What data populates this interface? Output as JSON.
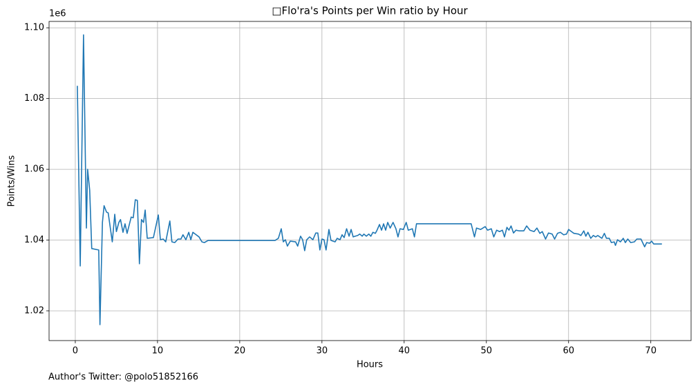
{
  "chart_data": {
    "type": "line",
    "title": "□Flo'ra's Points per Win ratio by Hour",
    "x_label": "Hours",
    "y_label": "Points/Wins",
    "y_offset_label": "1e6",
    "footnote": "Author's Twitter: @polo51852166",
    "color": "#1f77b4",
    "grid": true,
    "xlim": [
      -3.19,
      74.9
    ],
    "ylim": [
      1.0116,
      1.1018
    ],
    "xticks": [
      0,
      10,
      20,
      30,
      40,
      50,
      60,
      70
    ],
    "yticks": [
      {
        "value": 1.02,
        "label": "1.02"
      },
      {
        "value": 1.04,
        "label": "1.04"
      },
      {
        "value": 1.06,
        "label": "1.06"
      },
      {
        "value": 1.08,
        "label": "1.08"
      },
      {
        "value": 1.1,
        "label": "1.10"
      }
    ],
    "x": [
      0.25,
      0.6,
      1.0,
      1.35,
      1.5,
      1.75,
      2.0,
      2.85,
      3.0,
      3.3,
      3.5,
      3.8,
      4.0,
      4.5,
      4.8,
      5.0,
      5.3,
      5.5,
      5.8,
      6.05,
      6.3,
      6.8,
      7.05,
      7.3,
      7.55,
      7.8,
      8.05,
      8.3,
      8.5,
      8.75,
      9.5,
      10.1,
      10.35,
      10.7,
      11.0,
      11.5,
      11.75,
      12.1,
      12.5,
      12.85,
      13.1,
      13.45,
      13.8,
      14.05,
      14.3,
      15.05,
      15.4,
      15.7,
      16.15,
      24.3,
      24.7,
      25.05,
      25.3,
      25.55,
      25.8,
      26.15,
      26.8,
      27.05,
      27.4,
      27.65,
      27.9,
      28.15,
      28.5,
      28.9,
      29.25,
      29.5,
      29.75,
      30.0,
      30.25,
      30.5,
      30.85,
      31.1,
      31.6,
      31.85,
      32.2,
      32.45,
      32.7,
      33.0,
      33.3,
      33.55,
      33.8,
      34.05,
      34.35,
      34.6,
      34.9,
      35.1,
      35.4,
      35.7,
      35.95,
      36.2,
      36.5,
      36.7,
      37.0,
      37.25,
      37.5,
      37.75,
      38.0,
      38.3,
      38.65,
      39.0,
      39.25,
      39.5,
      39.9,
      40.25,
      40.5,
      41.0,
      41.25,
      41.5,
      48.15,
      48.55,
      48.8,
      49.3,
      49.85,
      50.15,
      50.6,
      50.9,
      51.25,
      51.6,
      51.95,
      52.2,
      52.5,
      52.75,
      53.0,
      53.3,
      53.6,
      54.0,
      54.55,
      54.9,
      55.3,
      55.8,
      56.15,
      56.5,
      56.8,
      57.2,
      57.55,
      58.0,
      58.3,
      58.65,
      59.0,
      59.4,
      59.75,
      60.0,
      60.35,
      60.65,
      61.2,
      61.5,
      61.85,
      62.1,
      62.35,
      62.7,
      63.0,
      63.3,
      63.55,
      63.8,
      64.05,
      64.35,
      64.6,
      64.95,
      65.2,
      65.55,
      65.7,
      65.95,
      66.3,
      66.65,
      66.9,
      67.2,
      67.55,
      68.0,
      68.3,
      68.8,
      69.25,
      69.5,
      69.85,
      70.1,
      70.35,
      71.35
    ],
    "values": [
      1.0836,
      1.0327,
      1.098,
      1.0434,
      1.06,
      1.0541,
      1.0376,
      1.0372,
      1.0161,
      1.045,
      1.0497,
      1.0479,
      1.0477,
      1.0395,
      1.0473,
      1.0424,
      1.045,
      1.0458,
      1.0422,
      1.0446,
      1.0419,
      1.0465,
      1.0463,
      1.0514,
      1.0512,
      1.0333,
      1.0458,
      1.045,
      1.0485,
      1.0405,
      1.0407,
      1.0471,
      1.0401,
      1.0403,
      1.0395,
      1.0454,
      1.0395,
      1.0393,
      1.0403,
      1.0403,
      1.0415,
      1.0401,
      1.0422,
      1.0401,
      1.0422,
      1.0409,
      1.0395,
      1.0393,
      1.0399,
      1.0399,
      1.0405,
      1.0432,
      1.0395,
      1.0401,
      1.0383,
      1.0397,
      1.0395,
      1.0383,
      1.0411,
      1.0401,
      1.037,
      1.0401,
      1.0409,
      1.0401,
      1.042,
      1.042,
      1.0372,
      1.0403,
      1.0401,
      1.0372,
      1.043,
      1.0399,
      1.0395,
      1.0405,
      1.0401,
      1.0415,
      1.0407,
      1.0432,
      1.0411,
      1.043,
      1.0409,
      1.0411,
      1.0413,
      1.0417,
      1.0411,
      1.0417,
      1.0411,
      1.0417,
      1.0411,
      1.0422,
      1.0419,
      1.0428,
      1.0444,
      1.0428,
      1.0446,
      1.0428,
      1.045,
      1.0434,
      1.045,
      1.0432,
      1.0409,
      1.0432,
      1.043,
      1.045,
      1.0428,
      1.0432,
      1.0409,
      1.0446,
      1.0446,
      1.0409,
      1.0434,
      1.043,
      1.0438,
      1.0428,
      1.0432,
      1.0409,
      1.0428,
      1.0424,
      1.0428,
      1.0409,
      1.0436,
      1.0428,
      1.044,
      1.042,
      1.0428,
      1.0426,
      1.0426,
      1.044,
      1.0428,
      1.0424,
      1.0434,
      1.0419,
      1.0424,
      1.0403,
      1.042,
      1.0417,
      1.0403,
      1.0419,
      1.0422,
      1.0415,
      1.0417,
      1.043,
      1.0424,
      1.0419,
      1.0417,
      1.0413,
      1.0426,
      1.0411,
      1.0422,
      1.0405,
      1.0413,
      1.0409,
      1.0413,
      1.0409,
      1.0405,
      1.0419,
      1.0405,
      1.0405,
      1.0393,
      1.0395,
      1.0385,
      1.0401,
      1.0395,
      1.0405,
      1.0393,
      1.0403,
      1.0393,
      1.0395,
      1.0403,
      1.0403,
      1.0381,
      1.0393,
      1.0391,
      1.0397,
      1.0389,
      1.0389
    ]
  }
}
